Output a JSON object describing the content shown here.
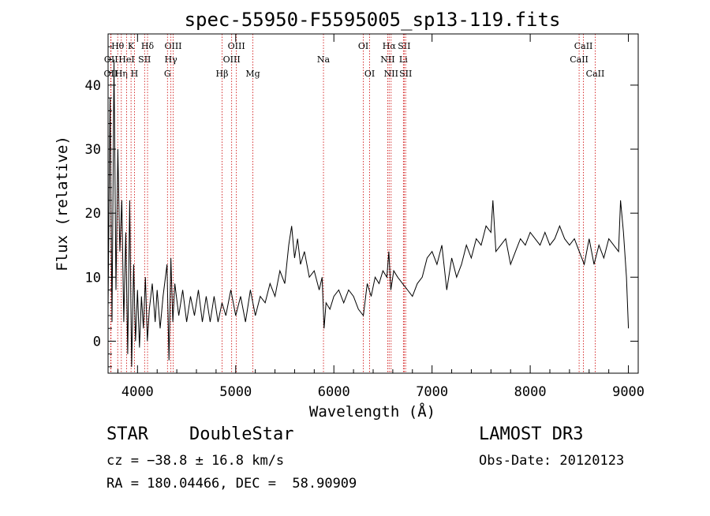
{
  "chart_data": {
    "type": "line",
    "title": "spec-55950-F5595005_sp13-119.fits",
    "xlabel": "Wavelength (Å)",
    "ylabel": "Flux (relative)",
    "xlim": [
      3700,
      9100
    ],
    "ylim": [
      -5,
      48
    ],
    "xticks": [
      4000,
      5000,
      6000,
      7000,
      8000,
      9000
    ],
    "yticks": [
      0,
      10,
      20,
      30,
      40
    ],
    "series": [
      {
        "name": "flux",
        "color": "#000000",
        "points": [
          [
            3700,
            5
          ],
          [
            3720,
            38
          ],
          [
            3740,
            3
          ],
          [
            3760,
            44
          ],
          [
            3780,
            8
          ],
          [
            3800,
            30
          ],
          [
            3820,
            14
          ],
          [
            3840,
            22
          ],
          [
            3860,
            3
          ],
          [
            3880,
            17
          ],
          [
            3900,
            -2
          ],
          [
            3920,
            22
          ],
          [
            3940,
            -4
          ],
          [
            3960,
            12
          ],
          [
            3980,
            0
          ],
          [
            4000,
            8
          ],
          [
            4020,
            -1
          ],
          [
            4040,
            7
          ],
          [
            4060,
            2
          ],
          [
            4080,
            10
          ],
          [
            4100,
            0
          ],
          [
            4120,
            5
          ],
          [
            4150,
            9
          ],
          [
            4180,
            3
          ],
          [
            4200,
            8
          ],
          [
            4230,
            2
          ],
          [
            4260,
            7
          ],
          [
            4300,
            12
          ],
          [
            4320,
            -3
          ],
          [
            4340,
            13
          ],
          [
            4360,
            3
          ],
          [
            4380,
            9
          ],
          [
            4420,
            4
          ],
          [
            4460,
            8
          ],
          [
            4500,
            3
          ],
          [
            4540,
            7
          ],
          [
            4580,
            4
          ],
          [
            4620,
            8
          ],
          [
            4660,
            3
          ],
          [
            4700,
            7
          ],
          [
            4740,
            3
          ],
          [
            4780,
            7
          ],
          [
            4820,
            3
          ],
          [
            4860,
            6
          ],
          [
            4900,
            4
          ],
          [
            4950,
            8
          ],
          [
            5000,
            4
          ],
          [
            5050,
            7
          ],
          [
            5100,
            3
          ],
          [
            5150,
            8
          ],
          [
            5200,
            4
          ],
          [
            5250,
            7
          ],
          [
            5300,
            6
          ],
          [
            5350,
            9
          ],
          [
            5400,
            7
          ],
          [
            5450,
            11
          ],
          [
            5500,
            9
          ],
          [
            5540,
            15
          ],
          [
            5570,
            18
          ],
          [
            5600,
            13
          ],
          [
            5630,
            16
          ],
          [
            5660,
            12
          ],
          [
            5700,
            14
          ],
          [
            5750,
            10
          ],
          [
            5800,
            11
          ],
          [
            5850,
            8
          ],
          [
            5880,
            10
          ],
          [
            5900,
            2
          ],
          [
            5920,
            6
          ],
          [
            5960,
            5
          ],
          [
            6000,
            7
          ],
          [
            6050,
            8
          ],
          [
            6100,
            6
          ],
          [
            6150,
            8
          ],
          [
            6200,
            7
          ],
          [
            6250,
            5
          ],
          [
            6300,
            4
          ],
          [
            6340,
            9
          ],
          [
            6380,
            7
          ],
          [
            6420,
            10
          ],
          [
            6460,
            9
          ],
          [
            6500,
            11
          ],
          [
            6540,
            10
          ],
          [
            6560,
            14
          ],
          [
            6580,
            8
          ],
          [
            6610,
            11
          ],
          [
            6650,
            10
          ],
          [
            6700,
            9
          ],
          [
            6750,
            8
          ],
          [
            6800,
            7
          ],
          [
            6850,
            9
          ],
          [
            6900,
            10
          ],
          [
            6950,
            13
          ],
          [
            7000,
            14
          ],
          [
            7050,
            12
          ],
          [
            7100,
            15
          ],
          [
            7150,
            8
          ],
          [
            7200,
            13
          ],
          [
            7250,
            10
          ],
          [
            7300,
            12
          ],
          [
            7350,
            15
          ],
          [
            7400,
            13
          ],
          [
            7450,
            16
          ],
          [
            7500,
            15
          ],
          [
            7550,
            18
          ],
          [
            7600,
            17
          ],
          [
            7620,
            22
          ],
          [
            7650,
            14
          ],
          [
            7700,
            15
          ],
          [
            7750,
            16
          ],
          [
            7800,
            12
          ],
          [
            7850,
            14
          ],
          [
            7900,
            16
          ],
          [
            7950,
            15
          ],
          [
            8000,
            17
          ],
          [
            8050,
            16
          ],
          [
            8100,
            15
          ],
          [
            8150,
            17
          ],
          [
            8200,
            15
          ],
          [
            8250,
            16
          ],
          [
            8300,
            18
          ],
          [
            8350,
            16
          ],
          [
            8400,
            15
          ],
          [
            8450,
            16
          ],
          [
            8500,
            14
          ],
          [
            8550,
            12
          ],
          [
            8600,
            16
          ],
          [
            8650,
            12
          ],
          [
            8700,
            15
          ],
          [
            8750,
            13
          ],
          [
            8800,
            16
          ],
          [
            8850,
            15
          ],
          [
            8900,
            14
          ],
          [
            8920,
            22
          ],
          [
            8950,
            17
          ],
          [
            8980,
            10
          ],
          [
            9000,
            2
          ]
        ]
      }
    ],
    "lines": [
      {
        "label": "OII",
        "x": 3727,
        "row": 3
      },
      {
        "label": "Hθ",
        "x": 3798,
        "row": 1
      },
      {
        "label": "OII",
        "x": 3730,
        "row": 2
      },
      {
        "label": "Hη",
        "x": 3835,
        "row": 3
      },
      {
        "label": "K",
        "x": 3934,
        "row": 1
      },
      {
        "label": "HeI",
        "x": 3889,
        "row": 2
      },
      {
        "label": "H",
        "x": 3969,
        "row": 3
      },
      {
        "label": "SII",
        "x": 4072,
        "row": 2
      },
      {
        "label": "Hδ",
        "x": 4102,
        "row": 1
      },
      {
        "label": "OIII",
        "x": 4363,
        "row": 1
      },
      {
        "label": "Hγ",
        "x": 4340,
        "row": 2
      },
      {
        "label": "G",
        "x": 4305,
        "row": 3
      },
      {
        "label": "Hβ",
        "x": 4861,
        "row": 3
      },
      {
        "label": "OIII",
        "x": 5007,
        "row": 1
      },
      {
        "label": "OIII",
        "x": 4959,
        "row": 2
      },
      {
        "label": "Mg",
        "x": 5175,
        "row": 3
      },
      {
        "label": "Na",
        "x": 5894,
        "row": 2
      },
      {
        "label": "OI",
        "x": 6300,
        "row": 1
      },
      {
        "label": "OI",
        "x": 6364,
        "row": 3
      },
      {
        "label": "Hα",
        "x": 6563,
        "row": 1
      },
      {
        "label": "NII",
        "x": 6548,
        "row": 2
      },
      {
        "label": "NII",
        "x": 6583,
        "row": 3
      },
      {
        "label": "SII",
        "x": 6716,
        "row": 1
      },
      {
        "label": "Li",
        "x": 6708,
        "row": 2
      },
      {
        "label": "SII",
        "x": 6731,
        "row": 3
      },
      {
        "label": "CaII",
        "x": 8542,
        "row": 1
      },
      {
        "label": "CaII",
        "x": 8498,
        "row": 2
      },
      {
        "label": "CaII",
        "x": 8662,
        "row": 3
      }
    ]
  },
  "info": {
    "class_label": "STAR",
    "subclass_label": "DoubleStar",
    "survey": "LAMOST DR3",
    "cz": "cz = −38.8 ± 16.8 km/s",
    "obs_date": "Obs-Date: 20120123",
    "coords": "RA = 180.04466, DEC =  58.90909"
  },
  "colors": {
    "axis": "#000000",
    "line_marker": "#cc0000"
  }
}
